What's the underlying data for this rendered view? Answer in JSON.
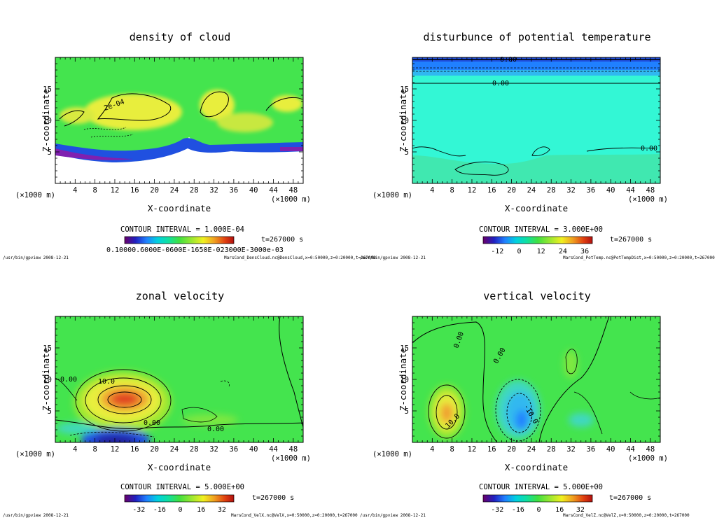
{
  "colors": {
    "field_green": "#44e44e",
    "field_cyan": "#33f7d5",
    "yellow": "#e8ee3c",
    "orange": "#f0a030",
    "red": "#e04020",
    "blue": "#2050e0",
    "deep_blue": "#2020a0",
    "purple": "#8020b0",
    "colorbar": [
      "#6a006a",
      "#2020c0",
      "#2080ff",
      "#00d0e0",
      "#10e0a0",
      "#40e040",
      "#a0e830",
      "#f0f020",
      "#f0a020",
      "#e04010",
      "#b01010"
    ]
  },
  "chart_data": [
    {
      "type": "heatmap",
      "title": "density of cloud",
      "xlabel": "X-coordinate",
      "ylabel": "Z-coordinate",
      "x_unit_label": "(×1000 m)",
      "x_unit_label_right": "(×1000 m)",
      "xlim": [
        0,
        50
      ],
      "ylim": [
        0,
        20
      ],
      "xticks": [
        4,
        8,
        12,
        16,
        20,
        24,
        28,
        32,
        36,
        40,
        44,
        48
      ],
      "yticks": [
        5,
        10,
        15
      ],
      "contour_interval": "CONTOUR INTERVAL = 1.000E-04",
      "time": "t=267000 s",
      "colorbar_ticks": [
        "0.1000E-05",
        "0.1000E-04",
        "0.1000E-03",
        "0.2000E-03",
        "0.3000E-03"
      ],
      "colorbar_overlap_text": "0.10000.6000E-0600E-1650E-023000E-3000e-03",
      "contour_labels": [
        "2e-04"
      ],
      "footer_left": "/usr/bin/gpview   2008-12-21",
      "footer_right": "MarsCond_DensCloud.nc@DensCloud,x=0:50000,z=0:20000,t=267000",
      "field": "cloud layer from about z=4 to z=15 km with dense yellow patches near z=10-14 and blue/purple base near z=4"
    },
    {
      "type": "heatmap",
      "title": "disturbunce of potential temperature",
      "xlabel": "X-coordinate",
      "ylabel": "Z-coordinate",
      "x_unit_label": "(×1000 m)",
      "x_unit_label_right": "(×1000 m)",
      "xlim": [
        0,
        50
      ],
      "ylim": [
        0,
        20
      ],
      "xticks": [
        4,
        8,
        12,
        16,
        20,
        24,
        28,
        32,
        36,
        40,
        44,
        48
      ],
      "yticks": [
        5,
        10,
        15
      ],
      "contour_interval": "CONTOUR INTERVAL = 3.000E+00",
      "time": "t=267000 s",
      "colorbar_ticks": [
        "-12",
        "0",
        "12",
        "24",
        "36"
      ],
      "contour_labels": [
        "0.00",
        "0.00",
        "0.00"
      ],
      "footer_left": "/usr/bin/gpview   2008-12-21",
      "footer_right": "MarsCond_PotTemp.nc@PotTempDist,x=0:50000,z=0:20000,t=267000"
    },
    {
      "type": "heatmap",
      "title": "zonal velocity",
      "xlabel": "X-coordinate",
      "ylabel": "Z-coordinate",
      "x_unit_label": "(×1000 m)",
      "x_unit_label_right": "(×1000 m)",
      "xlim": [
        0,
        50
      ],
      "ylim": [
        0,
        20
      ],
      "xticks": [
        4,
        8,
        12,
        16,
        20,
        24,
        28,
        32,
        36,
        40,
        44,
        48
      ],
      "yticks": [
        5,
        10,
        15
      ],
      "contour_interval": "CONTOUR INTERVAL = 5.000E+00",
      "time": "t=267000 s",
      "colorbar_ticks": [
        "-32",
        "-16",
        "0",
        "16",
        "32"
      ],
      "contour_labels": [
        "10.0",
        "0.00",
        "0.00",
        "0.00"
      ],
      "footer_left": "/usr/bin/gpview   2008-12-21",
      "footer_right": "MarsCond_VelX.nc@VelX,x=0:50000,z=0:20000,t=267000"
    },
    {
      "type": "heatmap",
      "title": "vertical velocity",
      "xlabel": "X-coordinate",
      "ylabel": "Z-coordinate",
      "x_unit_label": "(×1000 m)",
      "x_unit_label_right": "(×1000 m)",
      "xlim": [
        0,
        50
      ],
      "ylim": [
        0,
        20
      ],
      "xticks": [
        4,
        8,
        12,
        16,
        20,
        24,
        28,
        32,
        36,
        40,
        44,
        48
      ],
      "yticks": [
        5,
        10,
        15
      ],
      "contour_interval": "CONTOUR INTERVAL = 5.000E+00",
      "time": "t=267000 s",
      "colorbar_ticks": [
        "-32",
        "-16",
        "0",
        "16",
        "32"
      ],
      "contour_labels": [
        "0.00",
        "0.00",
        "-10.0",
        "10.0"
      ],
      "footer_left": "/usr/bin/gpview   2008-12-21",
      "footer_right": "MarsCond_VelZ.nc@VelZ,x=0:50000,z=0:20000,t=267000"
    }
  ]
}
